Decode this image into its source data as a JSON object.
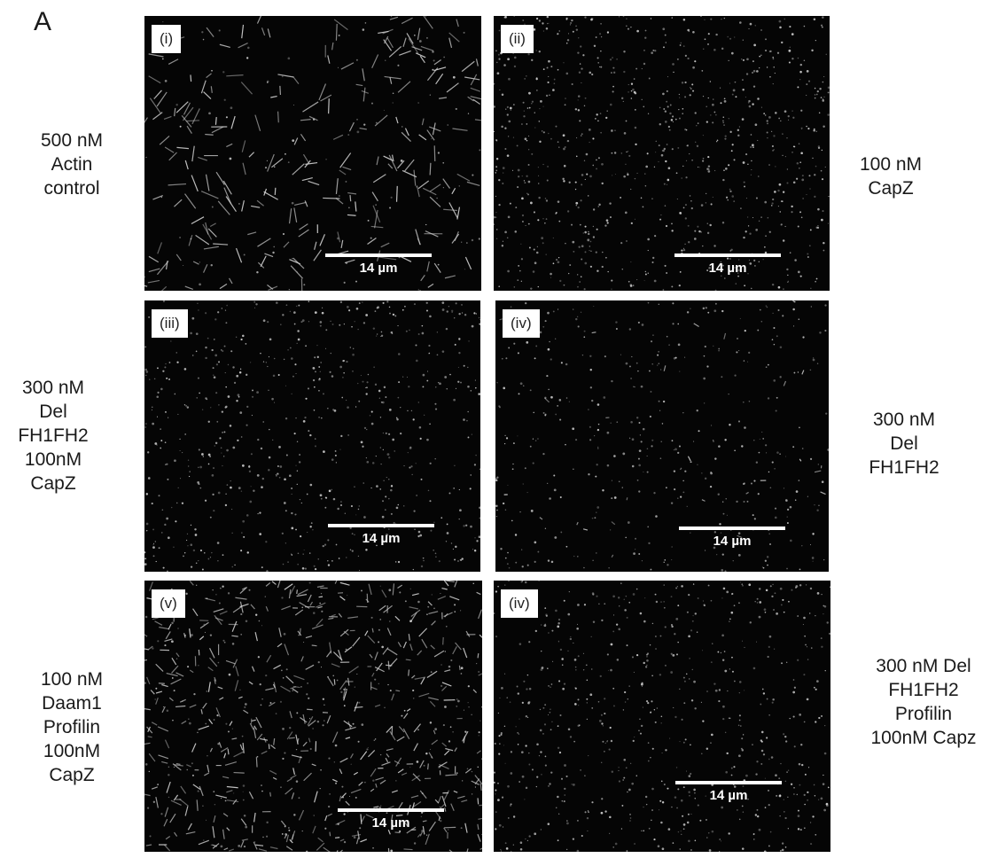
{
  "figure_label": "A",
  "panels": [
    {
      "tag": "(i)",
      "scale": "14 µm",
      "texture": "filaments"
    },
    {
      "tag": "(ii)",
      "scale": "14 µm",
      "texture": "dots"
    },
    {
      "tag": "(iii)",
      "scale": "14 µm",
      "texture": "fine-dots"
    },
    {
      "tag": "(iv)",
      "scale": "14 µm",
      "texture": "sparse-dots"
    },
    {
      "tag": "(v)",
      "scale": "14 µm",
      "texture": "dense-filaments"
    },
    {
      "tag": "(iv)",
      "scale": "14 µm",
      "texture": "fine-dots"
    }
  ],
  "labels": {
    "r1_left": [
      "500 nM",
      "Actin",
      "control"
    ],
    "r1_right": [
      "100 nM",
      "CapZ"
    ],
    "r2_left": [
      "300 nM",
      "Del",
      "FH1FH2",
      "100nM",
      "CapZ"
    ],
    "r2_right": [
      "300 nM",
      "Del",
      "FH1FH2"
    ],
    "r3_left": [
      "100 nM",
      "Daam1",
      "Profilin",
      "100nM",
      "CapZ"
    ],
    "r3_right": [
      "300 nM Del",
      "FH1FH2",
      "Profilin",
      "100nM Capz"
    ]
  }
}
